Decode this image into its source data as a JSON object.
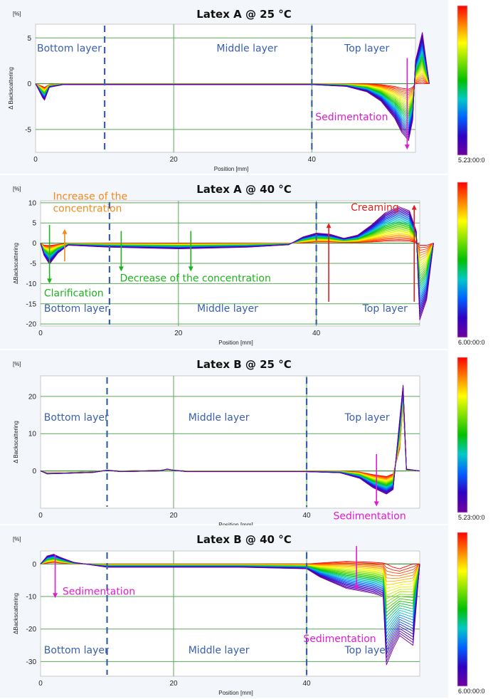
{
  "colors": {
    "layer_text": "#3a5fad",
    "magenta": "#e11bd0",
    "green": "#1fb21f",
    "orange": "#f08a1c",
    "red": "#e21f1f",
    "divider": "#3a5fad",
    "grid": "#5aa85a"
  },
  "chart_data": [
    {
      "type": "line",
      "title": "Latex A @ 25 °C",
      "ylabel": "Δ Backscattering",
      "yunit": "[%]",
      "xlabel": "Position [mm]",
      "xlim": [
        0,
        55
      ],
      "ylim": [
        -7.5,
        6.5
      ],
      "xticks": [
        0,
        20,
        40
      ],
      "yticks": [
        5,
        0,
        -5
      ],
      "grid": true,
      "dividers": [
        10,
        40
      ],
      "layer_labels": [
        {
          "text": "Bottom layer",
          "x": 0,
          "y": 3.5
        },
        {
          "text": "Middle layer",
          "x": 26,
          "y": 3.5
        },
        {
          "text": "Top layer",
          "x": 44.5,
          "y": 3.5
        }
      ],
      "annotations": [
        {
          "text": "Sedimentation",
          "color": "magenta",
          "x": 40.5,
          "y": -4
        }
      ],
      "arrows": [
        {
          "color": "magenta",
          "x": 53.8,
          "y1": 2.8,
          "y2": -7.2
        }
      ],
      "legend": {
        "end_label": "5.23:00:0",
        "placement": "right colour scale"
      },
      "series_template": {
        "x": [
          0,
          1,
          1.3,
          2,
          4,
          10,
          20,
          30,
          40,
          45,
          48,
          50,
          52,
          53,
          54,
          54.6,
          55,
          56,
          57
        ],
        "first": [
          0,
          -0.3,
          -0.4,
          -0.1,
          0,
          0,
          0,
          0,
          0,
          0,
          0,
          -0.1,
          -0.3,
          -0.5,
          -0.6,
          -0.4,
          0,
          0,
          0
        ],
        "last": [
          0,
          -1.5,
          -1.8,
          -0.4,
          -0.1,
          -0.1,
          -0.1,
          -0.1,
          -0.1,
          -0.3,
          -0.9,
          -1.9,
          -3.8,
          -5.3,
          -6.2,
          -4,
          2.5,
          5.6,
          0
        ],
        "count": 30
      }
    },
    {
      "type": "line",
      "title": "Latex A @ 40 °C",
      "ylabel": "ΔBackscattering",
      "yunit": "[%]",
      "xlabel": "Position [mm]",
      "xlim": [
        0,
        55
      ],
      "ylim": [
        -20.5,
        10.5
      ],
      "xticks": [
        0,
        20,
        40
      ],
      "yticks": [
        10,
        5,
        0,
        -5,
        -10,
        -15,
        -20
      ],
      "grid": true,
      "dividers": [
        10,
        40
      ],
      "layer_labels": [
        {
          "text": "Bottom layer",
          "x": 0.3,
          "y": -17
        },
        {
          "text": "Middle layer",
          "x": 22.5,
          "y": -17
        },
        {
          "text": "Top layer",
          "x": 46.5,
          "y": -17
        }
      ],
      "annotations": [
        {
          "text": "Increase of the",
          "color": "orange",
          "x": 1.8,
          "y": 10.8
        },
        {
          "text": "concentration",
          "color": "orange",
          "x": 1.8,
          "y": 7.8
        },
        {
          "text": "Creaming",
          "color": "red",
          "x": 45,
          "y": 8
        },
        {
          "text": "Decrease of the concentration",
          "color": "green",
          "x": 11.5,
          "y": -9.5
        },
        {
          "text": "Clarification",
          "color": "green",
          "x": 0.5,
          "y": -13.2
        }
      ],
      "arrows": [
        {
          "color": "green",
          "x": 1.3,
          "y1": 4.5,
          "y2": -10
        },
        {
          "color": "orange",
          "x": 3.5,
          "y1": -4.5,
          "y2": 3.5
        },
        {
          "color": "green",
          "x": 11.7,
          "y1": 3,
          "y2": -7
        },
        {
          "color": "green",
          "x": 21.8,
          "y1": 3,
          "y2": -7
        },
        {
          "color": "red",
          "x": 41.8,
          "y1": -14.5,
          "y2": 5
        },
        {
          "color": "red",
          "x": 54.2,
          "y1": -14.5,
          "y2": 9.5
        }
      ],
      "legend": {
        "end_label": "6.00:00:0",
        "placement": "right colour scale"
      },
      "series_template": {
        "x": [
          0,
          0.5,
          1.3,
          2.5,
          4,
          10,
          20,
          30,
          36,
          38,
          40,
          42,
          44,
          46,
          48,
          50,
          52,
          53.5,
          54.5,
          55,
          56,
          57
        ],
        "first": [
          0,
          -0.5,
          -0.6,
          -0.3,
          0,
          0,
          0,
          0,
          0,
          0.1,
          0.3,
          0.3,
          0.2,
          0.2,
          0.3,
          0.5,
          0.6,
          0.5,
          0.2,
          -0.5,
          -0.5,
          0
        ],
        "last": [
          0,
          -3,
          -5.2,
          -2.5,
          -0.5,
          -1,
          -1.4,
          -1,
          -0.4,
          1.5,
          2.5,
          2.2,
          1.2,
          2,
          4.5,
          7.5,
          9,
          8,
          3,
          -19,
          -14,
          0
        ],
        "count": 30
      }
    },
    {
      "type": "line",
      "title": "Latex B @ 25 °C",
      "ylabel": "Δ Backscattering",
      "yunit": "[%]",
      "xlabel": "Position [mm]",
      "xlim": [
        0,
        57
      ],
      "ylim": [
        -10,
        25.5
      ],
      "xticks": [
        0,
        20,
        40
      ],
      "yticks": [
        20,
        10,
        0
      ],
      "grid": true,
      "dividers": [
        10,
        40
      ],
      "layer_labels": [
        {
          "text": "Bottom layer",
          "x": 0.3,
          "y": 13.5
        },
        {
          "text": "Middle layer",
          "x": 22,
          "y": 13.5
        },
        {
          "text": "Top layer",
          "x": 45.5,
          "y": 13.5
        }
      ],
      "annotations": [
        {
          "text": "Sedimentation",
          "color": "magenta",
          "x": 44,
          "y": -13
        }
      ],
      "arrows": [
        {
          "color": "magenta",
          "x": 50.5,
          "y1": 4.5,
          "y2": -9.5
        }
      ],
      "legend": {
        "end_label": "5.23:00:0",
        "placement": "right colour scale"
      },
      "series_template": {
        "x": [
          0,
          1,
          3,
          8,
          10,
          12,
          18,
          19,
          20,
          22,
          30,
          40,
          45,
          48,
          50,
          52,
          53,
          54,
          54.5,
          55,
          57
        ],
        "first": [
          0,
          -0.5,
          -0.5,
          -0.2,
          0.2,
          0,
          0.2,
          0.4,
          0.2,
          0,
          0,
          0,
          0,
          -0.3,
          -1,
          -1.5,
          -0.8,
          6,
          18,
          0,
          0
        ],
        "last": [
          0,
          -0.8,
          -0.7,
          -0.4,
          0.2,
          -0.2,
          0,
          0.5,
          0.2,
          -0.2,
          -0.2,
          -0.2,
          -0.5,
          -2,
          -4.5,
          -6.2,
          -5,
          14,
          23,
          0.5,
          0
        ],
        "count": 30
      }
    },
    {
      "type": "line",
      "title": "Latex B @ 40 °C",
      "ylabel": "ΔBackscattering",
      "yunit": "[%]",
      "xlabel": "Position [mm]",
      "xlim": [
        0,
        57
      ],
      "ylim": [
        -34.5,
        4
      ],
      "xticks": [
        0,
        20,
        40
      ],
      "yticks": [
        0,
        -10,
        -20,
        -30
      ],
      "grid": true,
      "dividers": [
        10,
        40
      ],
      "layer_labels": [
        {
          "text": "Bottom layer",
          "x": 0.3,
          "y": -27.5
        },
        {
          "text": "Middle layer",
          "x": 22,
          "y": -27.5
        },
        {
          "text": "Top layer",
          "x": 45.5,
          "y": -27.5
        }
      ],
      "annotations": [
        {
          "text": "Sedimentation",
          "color": "magenta",
          "x": 3.3,
          "y": -9.5
        },
        {
          "text": "Sedimentation",
          "color": "magenta",
          "x": 39.5,
          "y": -24
        }
      ],
      "arrows": [
        {
          "color": "magenta",
          "x": 2.2,
          "y1": 2.8,
          "y2": -10.5
        },
        {
          "color": "magenta",
          "x": 47.5,
          "y1": 5.5,
          "y2": -8
        }
      ],
      "legend": {
        "end_label": "6.00:00:0",
        "placement": "right colour scale"
      },
      "series_template": {
        "x": [
          0,
          1,
          2,
          3,
          5,
          10,
          20,
          30,
          40,
          42,
          46,
          50,
          51.5,
          52,
          53,
          54,
          56,
          57
        ],
        "first": [
          0,
          0.3,
          0.5,
          0.3,
          0,
          0,
          0,
          0,
          0,
          0.3,
          0.8,
          0.5,
          0.3,
          0,
          -1,
          -1.5,
          0,
          0
        ],
        "last": [
          0,
          2.5,
          3,
          2,
          0.5,
          -1,
          -1,
          -1,
          -1.5,
          -4,
          -7.5,
          -9,
          -10,
          -31,
          -26,
          -22,
          -25,
          0
        ],
        "count": 30
      }
    }
  ]
}
